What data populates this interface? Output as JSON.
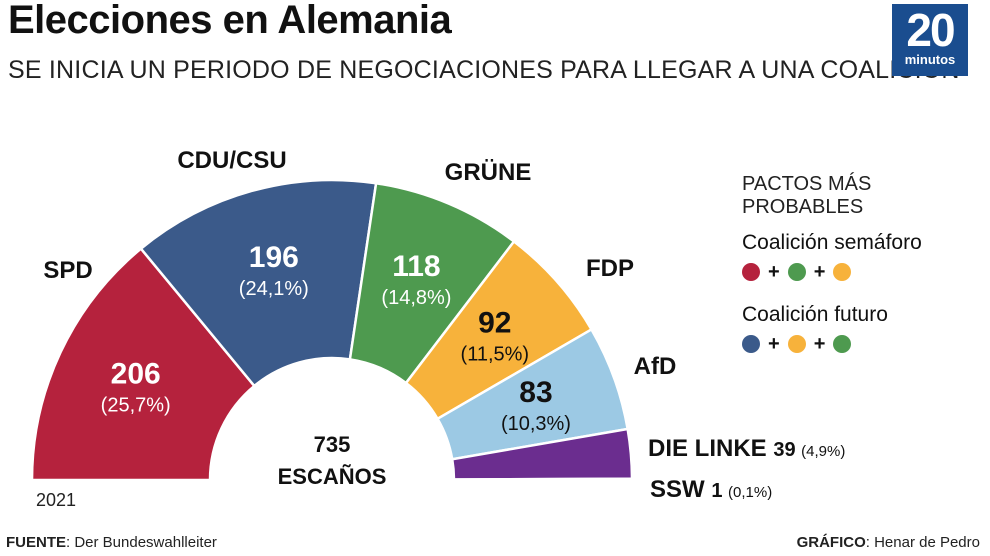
{
  "header": {
    "title": "Elecciones en Alemania",
    "subtitle": "SE INICIA UN PERIODO DE NEGOCIACIONES PARA LLEGAR A UNA COALICIÓN",
    "logo_number": "20",
    "logo_text": "minutos"
  },
  "chart_data": {
    "type": "pie",
    "center_line1": "735",
    "center_line2": "ESCAÑOS",
    "year": "2021",
    "parties": [
      {
        "name": "SPD",
        "seats": 206,
        "seats_label": "206",
        "pct_label": "(25,7%)",
        "color": "#b5223d",
        "label_style": "outside",
        "value_style": "inside"
      },
      {
        "name": "CDU/CSU",
        "seats": 196,
        "seats_label": "196",
        "pct_label": "(24,1%)",
        "color": "#3b5a8a",
        "label_style": "outside",
        "value_style": "inside"
      },
      {
        "name": "GRÜNE",
        "seats": 118,
        "seats_label": "118",
        "pct_label": "(14,8%)",
        "color": "#4e9a4f",
        "label_style": "outside",
        "value_style": "inside"
      },
      {
        "name": "FDP",
        "seats": 92,
        "seats_label": "92",
        "pct_label": "(11,5%)",
        "color": "#f7b23b",
        "label_style": "outside",
        "value_style": "inside"
      },
      {
        "name": "AfD",
        "seats": 83,
        "seats_label": "83",
        "pct_label": "(10,3%)",
        "color": "#9cc9e4",
        "label_style": "outside",
        "value_style": "inside"
      },
      {
        "name": "DIE LINKE",
        "seats": 39,
        "seats_label": "39",
        "pct_label": "(4,9%)",
        "color": "#6b2d8f",
        "label_style": "inline",
        "value_style": "inline"
      },
      {
        "name": "SSW",
        "seats": 1,
        "seats_label": "1",
        "pct_label": "(0,1%)",
        "color": "#bbbbbb",
        "label_style": "inline",
        "value_style": "inline"
      }
    ]
  },
  "pacts": {
    "title": "PACTOS MÁS PROBABLES",
    "coalitions": [
      {
        "name": "Coalición semáforo",
        "colors": [
          "#b5223d",
          "#4e9a4f",
          "#f7b23b"
        ],
        "icons": [
          "red-party-dot-icon",
          "green-party-dot-icon",
          "yellow-party-dot-icon"
        ]
      },
      {
        "name": "Coalición futuro",
        "colors": [
          "#3b5a8a",
          "#f7b23b",
          "#4e9a4f"
        ],
        "icons": [
          "blue-party-dot-icon",
          "yellow-party-dot-icon",
          "green-party-dot-icon"
        ]
      }
    ],
    "plus": "+"
  },
  "footer": {
    "source_label": "FUENTE",
    "source_value": ": Der Bundeswahlleiter",
    "credit_label": "GRÁFICO",
    "credit_value": ": Henar de Pedro"
  }
}
